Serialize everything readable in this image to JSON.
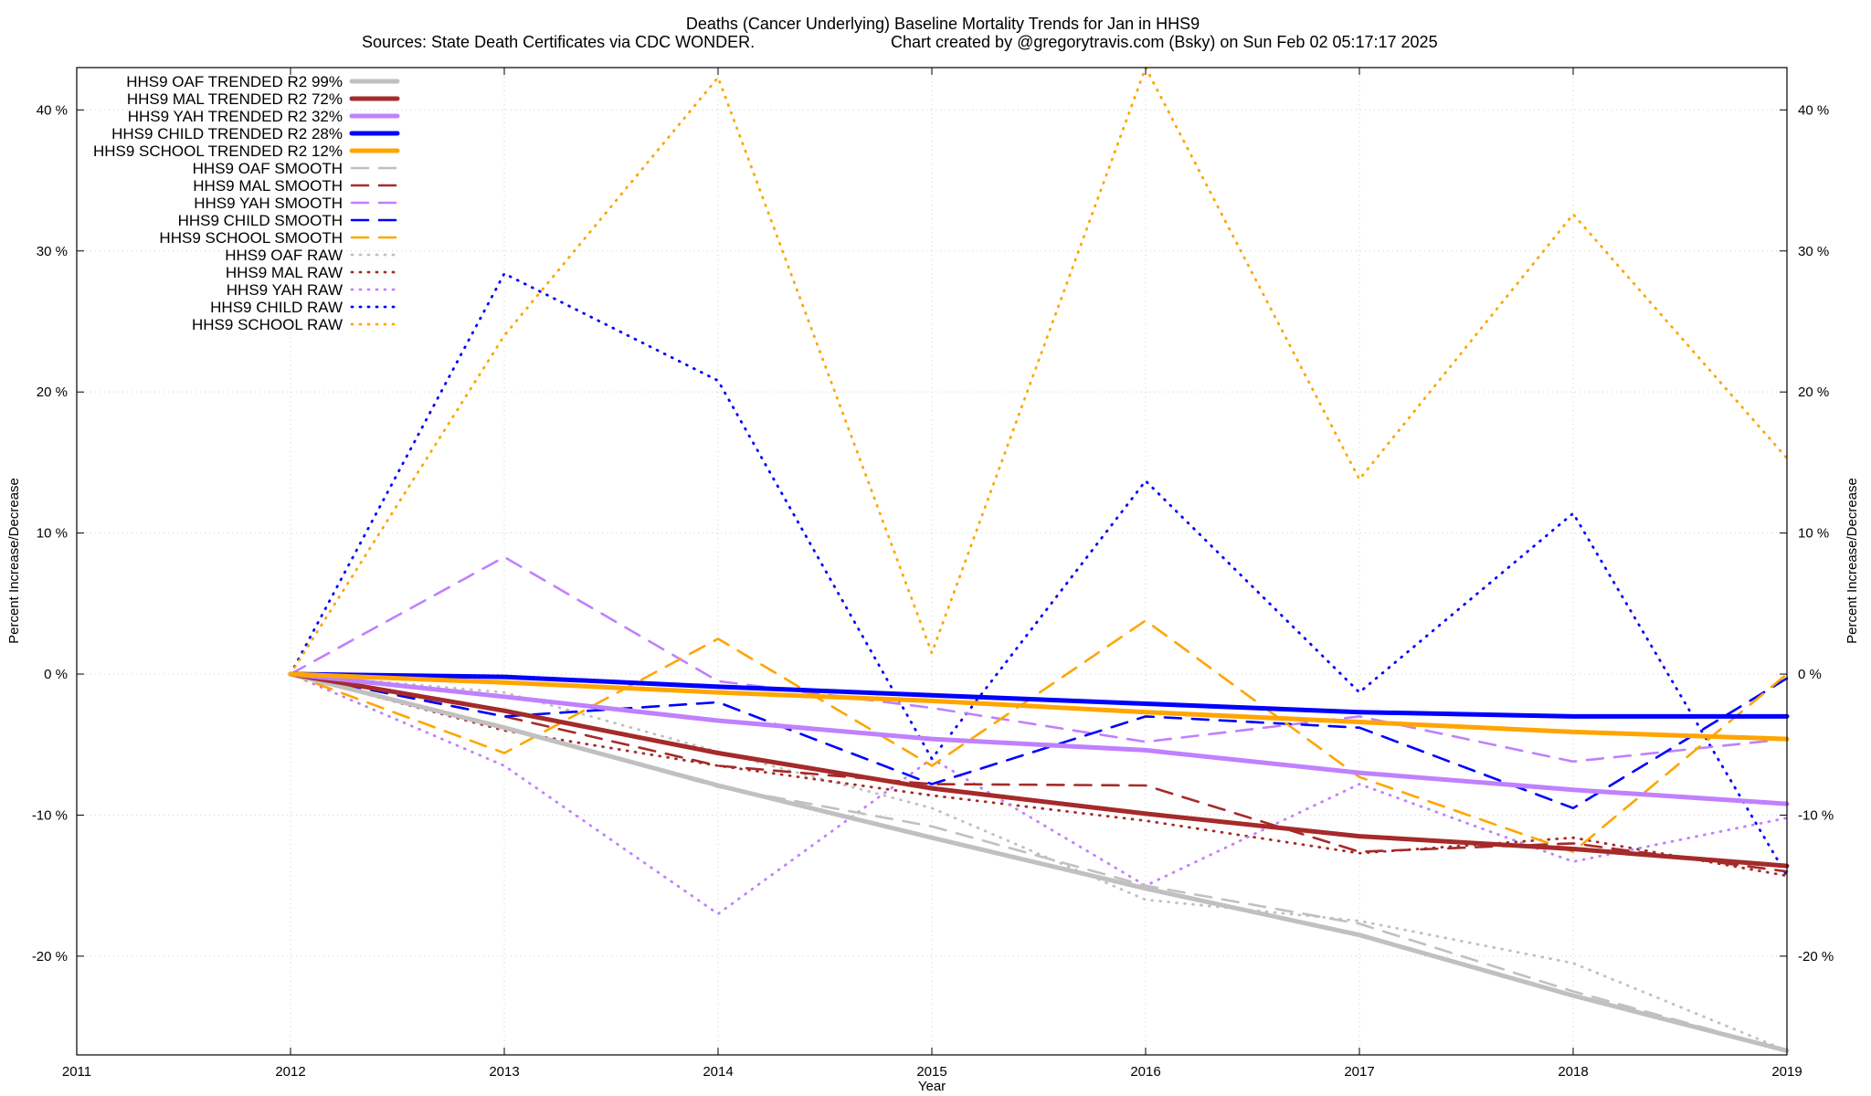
{
  "chart_data": {
    "type": "line",
    "title": "Deaths (Cancer Underlying)  Baseline Mortality Trends for Jan in HHS9",
    "subtitle_left": "Sources: State Death Certificates via CDC WONDER.",
    "subtitle_right": "Chart created by @gregorytravis.com (Bsky) on Sun Feb 02 05:17:17 2025",
    "xlabel": "Year",
    "ylabel": "Percent Increase/Decrease",
    "xlim": [
      2011,
      2019
    ],
    "ylim": [
      -27,
      43
    ],
    "x_ticks": [
      "2011",
      "2012",
      "2013",
      "2014",
      "2015",
      "2016",
      "2017",
      "2018",
      "2019"
    ],
    "y_ticks": [
      {
        "value": -20,
        "label": "-20 %"
      },
      {
        "value": -10,
        "label": "-10 %"
      },
      {
        "value": 0,
        "label": "0 %"
      },
      {
        "value": 10,
        "label": "10 %"
      },
      {
        "value": 20,
        "label": "20 %"
      },
      {
        "value": 30,
        "label": "30 %"
      },
      {
        "value": 40,
        "label": "40 %"
      }
    ],
    "grid": true,
    "legend_position": "top-left",
    "x": [
      2012,
      2013,
      2014,
      2015,
      2016,
      2017,
      2018,
      2019
    ],
    "series": [
      {
        "name": "HHS9 OAF TRENDED R2  99%",
        "style": "trend",
        "color": "#c0c0c0",
        "values": [
          0,
          -3.8,
          -7.9,
          -11.6,
          -15.2,
          -18.5,
          -22.8,
          -26.7
        ]
      },
      {
        "name": "HHS9 MAL TRENDED R2  72%",
        "style": "trend",
        "color": "#a52a2a",
        "values": [
          0,
          -2.6,
          -5.6,
          -8.1,
          -9.9,
          -11.5,
          -12.4,
          -13.6
        ]
      },
      {
        "name": "HHS9 YAH TRENDED R2  32%",
        "style": "trend",
        "color": "#c080ff",
        "values": [
          0,
          -1.6,
          -3.3,
          -4.6,
          -5.4,
          -7.0,
          -8.2,
          -9.2
        ]
      },
      {
        "name": "HHS9 CHILD TRENDED R2  28%",
        "style": "trend",
        "color": "#0000ff",
        "values": [
          0,
          -0.2,
          -0.9,
          -1.5,
          -2.1,
          -2.7,
          -3.0,
          -3.0
        ]
      },
      {
        "name": "HHS9 SCHOOL TRENDED R2  12%",
        "style": "trend",
        "color": "#ffa500",
        "values": [
          0,
          -0.6,
          -1.3,
          -1.9,
          -2.7,
          -3.4,
          -4.1,
          -4.6
        ]
      },
      {
        "name": "HHS9 OAF SMOOTH",
        "style": "smooth",
        "color": "#c0c0c0",
        "values": [
          0,
          -3.8,
          -8.0,
          -10.8,
          -15.0,
          -17.7,
          -22.5,
          -26.7
        ]
      },
      {
        "name": "HHS9 MAL SMOOTH",
        "style": "smooth",
        "color": "#a52a2a",
        "values": [
          0,
          -3.0,
          -6.5,
          -7.8,
          -7.9,
          -12.6,
          -12.0,
          -14.0
        ]
      },
      {
        "name": "HHS9 YAH SMOOTH",
        "style": "smooth",
        "color": "#c080ff",
        "values": [
          0,
          8.3,
          -0.5,
          -2.4,
          -4.8,
          -3.0,
          -6.2,
          -4.6
        ]
      },
      {
        "name": "HHS9 CHILD SMOOTH",
        "style": "smooth",
        "color": "#0000ff",
        "values": [
          0,
          -3.0,
          -2.0,
          -7.8,
          -3.0,
          -3.8,
          -9.5,
          -0.3
        ]
      },
      {
        "name": "HHS9 SCHOOL SMOOTH",
        "style": "smooth",
        "color": "#ffa500",
        "values": [
          0,
          -5.6,
          2.5,
          -6.5,
          3.8,
          -7.3,
          -12.6,
          0
        ]
      },
      {
        "name": "HHS9 OAF RAW",
        "style": "raw",
        "color": "#c0c0c0",
        "values": [
          0,
          -1.3,
          -5.5,
          -9.5,
          -16.0,
          -17.5,
          -20.5,
          -26.7
        ]
      },
      {
        "name": "HHS9 MAL RAW",
        "style": "raw",
        "color": "#a52a2a",
        "values": [
          0,
          -4.0,
          -6.5,
          -8.6,
          -10.4,
          -12.7,
          -11.6,
          -14.3
        ]
      },
      {
        "name": "HHS9 YAH RAW",
        "style": "raw",
        "color": "#c080ff",
        "values": [
          0,
          -6.5,
          -17.0,
          -6.0,
          -15.0,
          -7.8,
          -13.3,
          -10.2
        ]
      },
      {
        "name": "HHS9 CHILD RAW",
        "style": "raw",
        "color": "#0000ff",
        "values": [
          0,
          28.4,
          20.8,
          -6.0,
          13.7,
          -1.3,
          11.4,
          -14.3
        ]
      },
      {
        "name": "HHS9 SCHOOL RAW",
        "style": "raw",
        "color": "#ffa500",
        "values": [
          0,
          24.0,
          42.3,
          1.5,
          43.0,
          13.8,
          32.6,
          15.3
        ]
      }
    ]
  }
}
